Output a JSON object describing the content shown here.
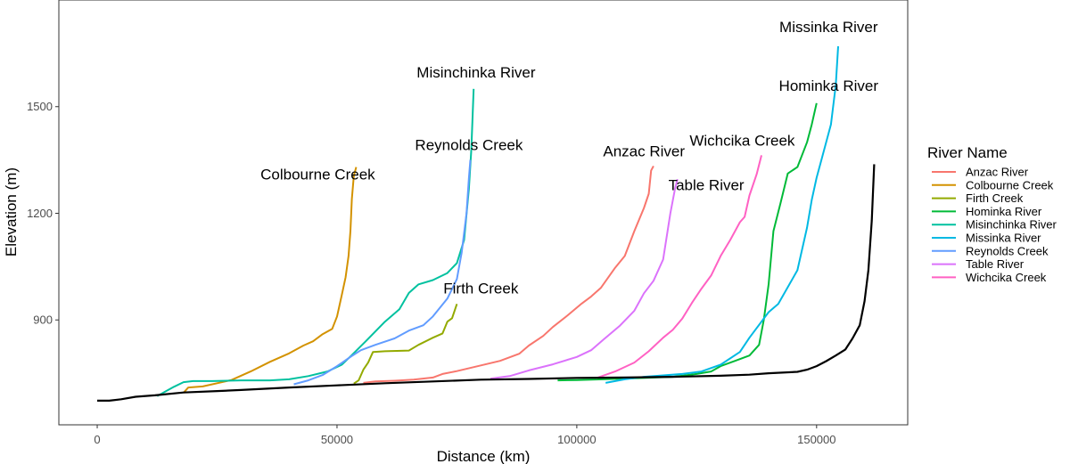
{
  "chart_data": {
    "type": "line",
    "title": "",
    "xlabel": "Distance (km)",
    "ylabel": "Elevation (m)",
    "xlim": [
      -8000,
      169000
    ],
    "ylim": [
      605,
      1800
    ],
    "x_ticks": [
      0,
      50000,
      100000,
      150000
    ],
    "x_tick_labels": [
      "0",
      "50000",
      "100000",
      "150000"
    ],
    "y_ticks": [
      900,
      1200,
      1500
    ],
    "y_tick_labels": [
      "900",
      "1200",
      "1500"
    ],
    "grid": false,
    "legend": {
      "title": "River Name",
      "position": "right",
      "entries": [
        "Anzac River",
        "Colbourne Creek",
        "Firth Creek",
        "Hominka River",
        "Misinchinka River",
        "Missinka River",
        "Reynolds Creek",
        "Table River",
        "Wichcika Creek"
      ]
    },
    "mainstem": {
      "color": "#000000",
      "points": [
        [
          0,
          673
        ],
        [
          2500,
          673
        ],
        [
          5000,
          677
        ],
        [
          8000,
          684
        ],
        [
          12000,
          688
        ],
        [
          18000,
          696
        ],
        [
          25000,
          700
        ],
        [
          30000,
          703
        ],
        [
          40000,
          710
        ],
        [
          50000,
          716
        ],
        [
          60000,
          722
        ],
        [
          70000,
          727
        ],
        [
          80000,
          732
        ],
        [
          90000,
          734
        ],
        [
          100000,
          737
        ],
        [
          110000,
          738
        ],
        [
          120000,
          740
        ],
        [
          130000,
          743
        ],
        [
          136000,
          746
        ],
        [
          140000,
          750
        ],
        [
          146000,
          754
        ],
        [
          148000,
          760
        ],
        [
          150000,
          770
        ],
        [
          152000,
          784
        ],
        [
          154000,
          800
        ],
        [
          156000,
          817
        ],
        [
          157500,
          848
        ],
        [
          159000,
          885
        ],
        [
          160000,
          953
        ],
        [
          160800,
          1040
        ],
        [
          161500,
          1180
        ],
        [
          162000,
          1338
        ]
      ]
    },
    "series": [
      {
        "name": "Anzac River",
        "color": "#F8766D",
        "points": [
          [
            55500,
            723
          ],
          [
            58000,
            727
          ],
          [
            62000,
            729
          ],
          [
            66000,
            732
          ],
          [
            70000,
            738
          ],
          [
            72000,
            748
          ],
          [
            75000,
            756
          ],
          [
            80000,
            772
          ],
          [
            84000,
            785
          ],
          [
            88000,
            805
          ],
          [
            90000,
            828
          ],
          [
            93000,
            855
          ],
          [
            95000,
            880
          ],
          [
            98000,
            912
          ],
          [
            101000,
            946
          ],
          [
            103000,
            966
          ],
          [
            105000,
            990
          ],
          [
            108000,
            1047
          ],
          [
            110000,
            1080
          ],
          [
            112000,
            1150
          ],
          [
            114000,
            1215
          ],
          [
            115000,
            1255
          ],
          [
            115500,
            1320
          ],
          [
            116000,
            1333
          ]
        ]
      },
      {
        "name": "Colbourne Creek",
        "color": "#D39200",
        "points": [
          [
            18000,
            695
          ],
          [
            19000,
            710
          ],
          [
            22000,
            713
          ],
          [
            28000,
            731
          ],
          [
            32000,
            755
          ],
          [
            36000,
            782
          ],
          [
            40000,
            806
          ],
          [
            43000,
            828
          ],
          [
            45000,
            840
          ],
          [
            47000,
            860
          ],
          [
            49000,
            875
          ],
          [
            50000,
            910
          ],
          [
            51000,
            970
          ],
          [
            51800,
            1020
          ],
          [
            52400,
            1080
          ],
          [
            52800,
            1150
          ],
          [
            53100,
            1240
          ],
          [
            53500,
            1305
          ],
          [
            54000,
            1330
          ]
        ]
      },
      {
        "name": "Firth Creek",
        "color": "#93AA00",
        "points": [
          [
            53500,
            721
          ],
          [
            54500,
            730
          ],
          [
            55500,
            760
          ],
          [
            56500,
            780
          ],
          [
            57500,
            810
          ],
          [
            60000,
            812
          ],
          [
            65000,
            814
          ],
          [
            67000,
            830
          ],
          [
            70000,
            850
          ],
          [
            72000,
            862
          ],
          [
            73000,
            895
          ],
          [
            74000,
            905
          ],
          [
            75000,
            945
          ]
        ]
      },
      {
        "name": "Hominka River",
        "color": "#00BA38",
        "points": [
          [
            96000,
            730
          ],
          [
            100000,
            731
          ],
          [
            110000,
            735
          ],
          [
            120000,
            740
          ],
          [
            125000,
            748
          ],
          [
            128000,
            755
          ],
          [
            130000,
            770
          ],
          [
            133000,
            785
          ],
          [
            136000,
            800
          ],
          [
            138000,
            830
          ],
          [
            139000,
            900
          ],
          [
            140000,
            1000
          ],
          [
            141000,
            1150
          ],
          [
            142500,
            1230
          ],
          [
            144000,
            1312
          ],
          [
            146000,
            1330
          ],
          [
            148000,
            1400
          ],
          [
            149000,
            1450
          ],
          [
            150000,
            1510
          ]
        ]
      },
      {
        "name": "Misinchinka River",
        "color": "#00C19F",
        "points": [
          [
            12500,
            686
          ],
          [
            14000,
            697
          ],
          [
            16000,
            712
          ],
          [
            18000,
            725
          ],
          [
            20000,
            728
          ],
          [
            24000,
            728
          ],
          [
            30000,
            730
          ],
          [
            36000,
            730
          ],
          [
            40000,
            733
          ],
          [
            44000,
            742
          ],
          [
            48000,
            755
          ],
          [
            51000,
            774
          ],
          [
            53000,
            800
          ],
          [
            56000,
            840
          ],
          [
            60000,
            895
          ],
          [
            63000,
            930
          ],
          [
            65000,
            976
          ],
          [
            67000,
            1000
          ],
          [
            70000,
            1012
          ],
          [
            73000,
            1032
          ],
          [
            75000,
            1060
          ],
          [
            76500,
            1125
          ],
          [
            77500,
            1270
          ],
          [
            78000,
            1380
          ],
          [
            78500,
            1550
          ]
        ]
      },
      {
        "name": "Missinka River",
        "color": "#00B9E3",
        "points": [
          [
            106000,
            723
          ],
          [
            110000,
            733
          ],
          [
            114000,
            740
          ],
          [
            118000,
            744
          ],
          [
            122000,
            748
          ],
          [
            126000,
            755
          ],
          [
            130000,
            774
          ],
          [
            134000,
            810
          ],
          [
            136000,
            850
          ],
          [
            140000,
            922
          ],
          [
            142000,
            945
          ],
          [
            146000,
            1040
          ],
          [
            148000,
            1160
          ],
          [
            149000,
            1238
          ],
          [
            150000,
            1300
          ],
          [
            151000,
            1350
          ],
          [
            153000,
            1450
          ],
          [
            154000,
            1560
          ],
          [
            154500,
            1670
          ]
        ]
      },
      {
        "name": "Reynolds Creek",
        "color": "#619CFF",
        "points": [
          [
            41000,
            719
          ],
          [
            44000,
            730
          ],
          [
            47000,
            745
          ],
          [
            50000,
            770
          ],
          [
            53000,
            798
          ],
          [
            55000,
            815
          ],
          [
            58000,
            830
          ],
          [
            62000,
            848
          ],
          [
            65000,
            870
          ],
          [
            68000,
            885
          ],
          [
            70000,
            910
          ],
          [
            73000,
            960
          ],
          [
            75000,
            1015
          ],
          [
            76000,
            1090
          ],
          [
            77000,
            1200
          ],
          [
            77500,
            1300
          ],
          [
            77800,
            1350
          ]
        ]
      },
      {
        "name": "Table River",
        "color": "#DB72FB",
        "points": [
          [
            82000,
            735
          ],
          [
            86000,
            742
          ],
          [
            90000,
            758
          ],
          [
            95000,
            775
          ],
          [
            100000,
            796
          ],
          [
            103000,
            815
          ],
          [
            106000,
            850
          ],
          [
            109000,
            884
          ],
          [
            112000,
            926
          ],
          [
            114000,
            975
          ],
          [
            116000,
            1010
          ],
          [
            118000,
            1070
          ],
          [
            119500,
            1200
          ],
          [
            120500,
            1270
          ],
          [
            121000,
            1296
          ]
        ]
      },
      {
        "name": "Wichcika Creek",
        "color": "#FF61C3",
        "points": [
          [
            104000,
            736
          ],
          [
            108000,
            755
          ],
          [
            112000,
            780
          ],
          [
            115000,
            812
          ],
          [
            118000,
            850
          ],
          [
            120000,
            872
          ],
          [
            122000,
            904
          ],
          [
            124000,
            948
          ],
          [
            126000,
            988
          ],
          [
            128000,
            1025
          ],
          [
            130000,
            1080
          ],
          [
            132000,
            1125
          ],
          [
            134000,
            1175
          ],
          [
            135000,
            1190
          ],
          [
            136000,
            1250
          ],
          [
            137500,
            1310
          ],
          [
            138500,
            1363
          ]
        ]
      }
    ],
    "annotations": [
      {
        "text": "Missinka River",
        "x": 152500,
        "y": 1710
      },
      {
        "text": "Hominka River",
        "x": 152500,
        "y": 1545
      },
      {
        "text": "Misinchinka River",
        "x": 79000,
        "y": 1582
      },
      {
        "text": "Reynolds Creek",
        "x": 77500,
        "y": 1378
      },
      {
        "text": "Anzac River",
        "x": 114000,
        "y": 1360
      },
      {
        "text": "Wichcika Creek",
        "x": 134500,
        "y": 1390
      },
      {
        "text": "Table River",
        "x": 127000,
        "y": 1265
      },
      {
        "text": "Colbourne Creek",
        "x": 46000,
        "y": 1295
      },
      {
        "text": "Firth Creek",
        "x": 80000,
        "y": 975
      }
    ]
  }
}
